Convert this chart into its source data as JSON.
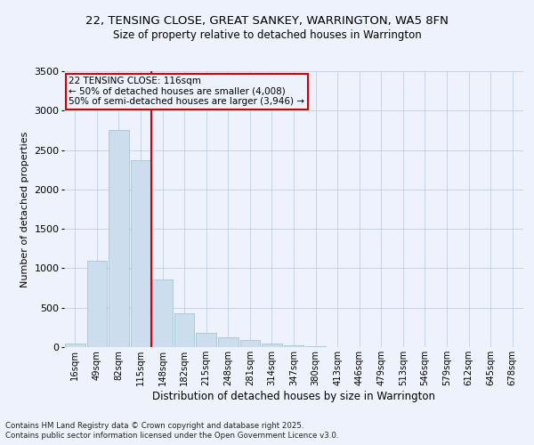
{
  "title_line1": "22, TENSING CLOSE, GREAT SANKEY, WARRINGTON, WA5 8FN",
  "title_line2": "Size of property relative to detached houses in Warrington",
  "xlabel": "Distribution of detached houses by size in Warrington",
  "ylabel": "Number of detached properties",
  "footnote1": "Contains HM Land Registry data © Crown copyright and database right 2025.",
  "footnote2": "Contains public sector information licensed under the Open Government Licence v3.0.",
  "bar_color": "#ccdded",
  "bar_edge_color": "#9bbccc",
  "bg_color": "#eef2fc",
  "grid_color": "#b8c8de",
  "annotation_box_color": "#cc0000",
  "annotation_line_color": "#cc0000",
  "categories": [
    "16sqm",
    "49sqm",
    "82sqm",
    "115sqm",
    "148sqm",
    "182sqm",
    "215sqm",
    "248sqm",
    "281sqm",
    "314sqm",
    "347sqm",
    "380sqm",
    "413sqm",
    "446sqm",
    "479sqm",
    "513sqm",
    "546sqm",
    "579sqm",
    "612sqm",
    "645sqm",
    "678sqm"
  ],
  "values": [
    50,
    1100,
    2750,
    2370,
    860,
    430,
    185,
    125,
    85,
    50,
    22,
    12,
    5,
    3,
    2,
    1,
    1,
    0,
    0,
    0,
    0
  ],
  "ylim": [
    0,
    3500
  ],
  "yticks": [
    0,
    500,
    1000,
    1500,
    2000,
    2500,
    3000,
    3500
  ],
  "property_bar_index": 3,
  "annotation_text_line1": "22 TENSING CLOSE: 116sqm",
  "annotation_text_line2": "← 50% of detached houses are smaller (4,008)",
  "annotation_text_line3": "50% of semi-detached houses are larger (3,946) →",
  "red_line_x": 3.5
}
